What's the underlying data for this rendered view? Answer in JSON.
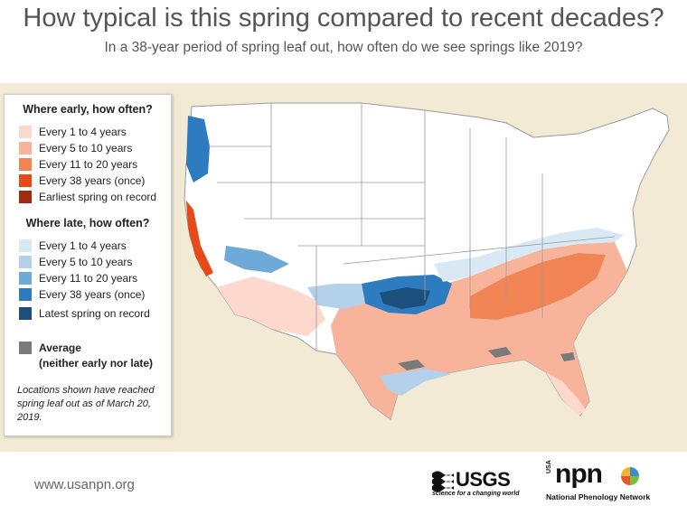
{
  "header": {
    "title": "How typical is this spring compared to recent decades?",
    "subtitle": "In a 38-year period of spring leaf out, how often do we see springs like 2019?"
  },
  "legend": {
    "early_heading": "Where early, how often?",
    "early_items": [
      {
        "label": "Every 1 to 4 years",
        "color": "#fcd9cc"
      },
      {
        "label": "Every 5 to 10 years",
        "color": "#f8b49a"
      },
      {
        "label": "Every 11 to 20 years",
        "color": "#f08455"
      },
      {
        "label": "Every 38 years (once)",
        "color": "#e64a1a"
      },
      {
        "label": "Earliest spring on record",
        "color": "#a12a10"
      }
    ],
    "late_heading": "Where late, how often?",
    "late_items": [
      {
        "label": "Every 1 to 4 years",
        "color": "#d9e8f5"
      },
      {
        "label": "Every 5 to 10 years",
        "color": "#b3d1ea"
      },
      {
        "label": "Every 11 to 20 years",
        "color": "#6fa9d8"
      },
      {
        "label": "Every 38 years (once)",
        "color": "#2f7bbf"
      },
      {
        "label": "Latest spring on record",
        "color": "#1c4f7c"
      }
    ],
    "average_label_1": "Average",
    "average_label_2": "(neither early nor late)",
    "average_color": "#7a7a7a",
    "note": "Locations shown have reached spring leaf out as of March 20, 2019."
  },
  "footer": {
    "website": "www.usanpn.org",
    "usgs_logo_text": "USGS",
    "usgs_tagline": "science for a changing world",
    "npn_logo_text": "npn",
    "npn_usa_text": "USA",
    "npn_full_name": "National Phenology Network"
  }
}
